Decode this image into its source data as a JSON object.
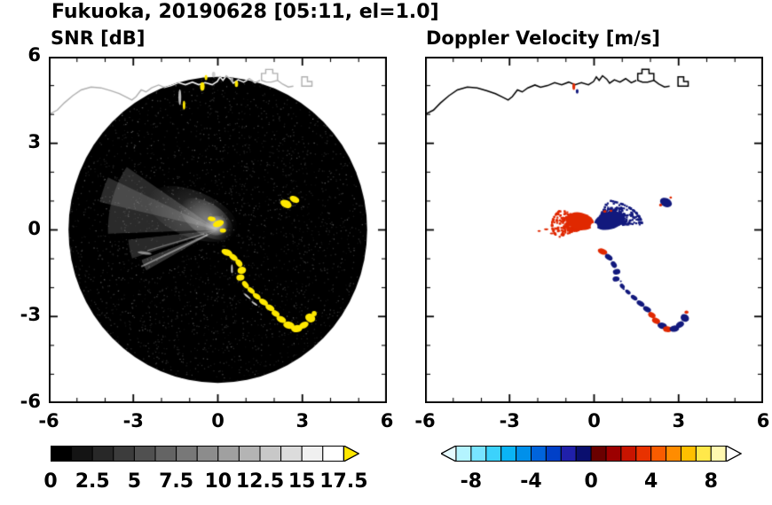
{
  "figure_title": "Fukuoka, 20190628 [05:11, el=1.0]",
  "panels": {
    "snr": {
      "title": "SNR [dB]",
      "x_tick_labels": [
        "-6",
        "-3",
        "0",
        "3",
        "6"
      ],
      "y_tick_labels": [
        "6",
        "3",
        "0",
        "-3",
        "-6"
      ],
      "colorbar_labels": [
        "0",
        "2.5",
        "5",
        "7.5",
        "10",
        "12.5",
        "15",
        "17.5"
      ],
      "colorbar_colors": [
        "#000000",
        "#141414",
        "#282828",
        "#3c3c3c",
        "#505050",
        "#646464",
        "#787878",
        "#8c8c8c",
        "#a0a0a0",
        "#b4b4b4",
        "#c8c8c8",
        "#dcdcdc",
        "#f0f0f0",
        "#ffffff"
      ],
      "colorbar_over_color": "#ffe800"
    },
    "doppler": {
      "title": "Doppler Velocity [m/s]",
      "x_tick_labels": [
        "-6",
        "-3",
        "0",
        "3",
        "6"
      ],
      "colorbar_labels": [
        "-8",
        "-4",
        "0",
        "4",
        "8"
      ],
      "colorbar_colors": [
        "#b4f4ff",
        "#78e4ff",
        "#3cd2fc",
        "#0ab4f5",
        "#0090ea",
        "#0064dc",
        "#0040c8",
        "#2020aa",
        "#0a0f6e",
        "#6a0000",
        "#9c0000",
        "#c81400",
        "#e83200",
        "#f85c00",
        "#ff8c00",
        "#ffc000",
        "#ffe84a",
        "#fff8b0"
      ],
      "colorbar_under_color": "#e6fbff",
      "colorbar_over_color": "#ffffff"
    }
  },
  "chart_data": {
    "type": "heatmap",
    "title": "Fukuoka, 20190628 [05:11, el=1.0]",
    "station": "Fukuoka",
    "date": "20190628",
    "time": "05:11",
    "elevation_deg": 1.0,
    "xlim": [
      -6,
      6
    ],
    "ylim": [
      -6,
      6
    ],
    "grid": false,
    "radar_disk": {
      "center": [
        0,
        0
      ],
      "radius": 5.3
    },
    "coastline": [
      [
        -6.0,
        4.0
      ],
      [
        -5.7,
        4.15
      ],
      [
        -5.45,
        4.4
      ],
      [
        -5.15,
        4.65
      ],
      [
        -4.85,
        4.85
      ],
      [
        -4.5,
        4.95
      ],
      [
        -4.15,
        4.92
      ],
      [
        -3.8,
        4.82
      ],
      [
        -3.5,
        4.72
      ],
      [
        -3.25,
        4.6
      ],
      [
        -3.05,
        4.5
      ],
      [
        -2.9,
        4.62
      ],
      [
        -2.72,
        4.85
      ],
      [
        -2.55,
        4.78
      ],
      [
        -2.35,
        4.92
      ],
      [
        -2.1,
        5.02
      ],
      [
        -1.9,
        4.94
      ],
      [
        -1.65,
        5.0
      ],
      [
        -1.4,
        5.1
      ],
      [
        -1.15,
        5.03
      ],
      [
        -0.9,
        5.12
      ],
      [
        -0.68,
        5.03
      ],
      [
        -0.45,
        5.1
      ],
      [
        -0.2,
        5.03
      ],
      [
        -0.02,
        5.14
      ],
      [
        0.08,
        5.3
      ],
      [
        0.18,
        5.18
      ],
      [
        0.3,
        5.34
      ],
      [
        0.45,
        5.22
      ],
      [
        0.55,
        5.08
      ],
      [
        0.72,
        5.2
      ],
      [
        0.92,
        5.12
      ],
      [
        1.12,
        5.24
      ],
      [
        1.32,
        5.1
      ],
      [
        1.5,
        5.18
      ]
    ],
    "port_outlines": [
      {
        "closed": true,
        "points": [
          [
            1.55,
            5.18
          ],
          [
            1.55,
            5.42
          ],
          [
            1.7,
            5.42
          ],
          [
            1.7,
            5.56
          ],
          [
            1.95,
            5.56
          ],
          [
            1.95,
            5.42
          ],
          [
            2.12,
            5.42
          ],
          [
            2.12,
            5.18
          ],
          [
            1.9,
            5.12
          ],
          [
            1.72,
            5.12
          ],
          [
            1.55,
            5.18
          ]
        ]
      },
      {
        "closed": false,
        "points": [
          [
            2.12,
            5.18
          ],
          [
            2.3,
            5.05
          ],
          [
            2.5,
            4.95
          ],
          [
            2.68,
            4.98
          ]
        ]
      },
      {
        "closed": true,
        "points": [
          [
            2.98,
            4.98
          ],
          [
            2.98,
            5.3
          ],
          [
            3.18,
            5.3
          ],
          [
            3.18,
            5.14
          ],
          [
            3.34,
            5.14
          ],
          [
            3.34,
            4.98
          ],
          [
            2.98,
            4.98
          ]
        ]
      }
    ],
    "panels": [
      {
        "name": "SNR [dB]",
        "units": "dB",
        "value_range": [
          0,
          17.5
        ],
        "colorbar_step": 1.25,
        "echo_color": "#ffe800",
        "wedges": [
          {
            "a0": 146,
            "a1": 182,
            "r": 3.9,
            "g": 150,
            "alpha": 0.28
          },
          {
            "a0": 186,
            "a1": 199,
            "r": 3.2,
            "g": 135,
            "alpha": 0.3
          },
          {
            "a0": 201,
            "a1": 209,
            "r": 2.9,
            "g": 150,
            "alpha": 0.35
          },
          {
            "a0": 155,
            "a1": 168,
            "r": 4.3,
            "g": 170,
            "alpha": 0.25
          }
        ],
        "dark_wedges": [
          {
            "a0": 182,
            "a1": 186,
            "r": 4.0
          },
          {
            "a0": 199,
            "a1": 201,
            "r": 3.3
          },
          {
            "a0": 209,
            "a1": 214,
            "r": 3.0
          }
        ],
        "streaks": [
          {
            "angle": 205,
            "r0": 0.4,
            "r1": 3.0,
            "w": 2,
            "alpha": 0.5
          },
          {
            "angle": 196,
            "r0": 0.5,
            "r1": 2.6,
            "w": 1.5,
            "alpha": 0.4
          }
        ],
        "plume": [
          {
            "cx": -0.9,
            "cy": 0.55,
            "rx": 1.7,
            "ry": 0.8,
            "rot": -22,
            "alpha": 0.22
          },
          {
            "cx": -0.4,
            "cy": 0.38,
            "rx": 1.05,
            "ry": 0.55,
            "rot": -33,
            "alpha": 0.45
          },
          {
            "cx": -0.05,
            "cy": 0.15,
            "rx": 0.42,
            "ry": 0.34,
            "rot": 0,
            "alpha": 0.85
          }
        ],
        "gray_marks": [
          [
            -1.35,
            4.6,
            0.1,
            0.55,
            0,
            "#bbbbbb"
          ],
          [
            -0.15,
            5.38,
            0.12,
            0.2,
            0,
            "#cccccc"
          ],
          [
            0.5,
            5.2,
            0.1,
            0.18,
            0,
            "#aaaaaa"
          ],
          [
            -2.6,
            -0.8,
            0.5,
            0.1,
            -8,
            "#888888"
          ]
        ],
        "faint_dashes": [
          [
            1.05,
            -2.3,
            0.3,
            0.05,
            -40
          ],
          [
            1.3,
            -2.55,
            0.25,
            0.05,
            -35
          ],
          [
            0.5,
            -1.35,
            0.05,
            0.3,
            0
          ]
        ],
        "echoes": [
          [
            0.02,
            0.22,
            0.4,
            0.22,
            20
          ],
          [
            -0.22,
            0.38,
            0.28,
            0.16,
            -10
          ],
          [
            0.18,
            -0.02,
            0.22,
            0.14,
            0
          ],
          [
            -0.55,
            4.97,
            0.16,
            0.3,
            0
          ],
          [
            -0.42,
            5.28,
            0.1,
            0.18,
            0
          ],
          [
            0.66,
            5.06,
            0.12,
            0.22,
            0
          ],
          [
            -1.2,
            4.32,
            0.09,
            0.3,
            0
          ],
          [
            2.42,
            0.9,
            0.42,
            0.26,
            -25
          ],
          [
            2.72,
            1.06,
            0.36,
            0.22,
            -25
          ],
          [
            0.32,
            -0.78,
            0.4,
            0.22,
            -20
          ],
          [
            0.55,
            -0.95,
            0.35,
            0.2,
            -35
          ],
          [
            0.75,
            -1.15,
            0.3,
            0.2,
            -55
          ],
          [
            0.85,
            -1.4,
            0.25,
            0.3,
            -75
          ],
          [
            0.8,
            -1.65,
            0.22,
            0.28,
            -85
          ],
          [
            0.98,
            -1.9,
            0.3,
            0.18,
            -50
          ],
          [
            1.18,
            -2.1,
            0.3,
            0.17,
            -40
          ],
          [
            1.38,
            -2.3,
            0.32,
            0.18,
            -35
          ],
          [
            1.62,
            -2.5,
            0.35,
            0.2,
            -30
          ],
          [
            1.85,
            -2.7,
            0.35,
            0.2,
            -28
          ],
          [
            2.05,
            -2.9,
            0.3,
            0.2,
            -30
          ],
          [
            2.25,
            -3.1,
            0.36,
            0.22,
            -25
          ],
          [
            2.52,
            -3.3,
            0.4,
            0.25,
            -10
          ],
          [
            2.8,
            -3.42,
            0.4,
            0.25,
            5
          ],
          [
            3.05,
            -3.3,
            0.36,
            0.22,
            25
          ],
          [
            3.28,
            -3.05,
            0.3,
            0.36,
            60
          ],
          [
            3.42,
            -2.9,
            0.18,
            0.18,
            0
          ]
        ]
      },
      {
        "name": "Doppler Velocity [m/s]",
        "units": "m/s",
        "value_range": [
          -9,
          9
        ],
        "colorbar_step": 1,
        "red": "#e02800",
        "navy": "#12197d",
        "red_fan": {
          "cx": 0.0,
          "cy": 0.18,
          "a0": 140,
          "a1": 212,
          "rmax": 1.5,
          "n": 550,
          "core": {
            "cx": -0.5,
            "cy": 0.3,
            "rx": 0.5,
            "ry": 0.3,
            "rot": -12
          }
        },
        "blue_fan": {
          "cx": 0.05,
          "cy": 0.15,
          "a0": 2,
          "a1": 75,
          "rmax": 1.65,
          "n": 620,
          "core": {
            "cx": 0.55,
            "cy": 0.32,
            "rx": 0.55,
            "ry": 0.3,
            "rot": 15
          }
        },
        "red_dashes": [
          [
            -1.7,
            0.02,
            0.16,
            0.07,
            0
          ],
          [
            -1.95,
            -0.04,
            0.12,
            0.06,
            0
          ],
          [
            -1.5,
            -0.12,
            0.14,
            0.06,
            0
          ],
          [
            0.38,
            0.64,
            0.12,
            0.08,
            0
          ],
          [
            0.6,
            0.66,
            0.1,
            0.07,
            0
          ]
        ],
        "white_hole": [
          0.0,
          0.12,
          0.12
        ],
        "spot_navy": [
          2.55,
          0.95,
          0.44,
          0.3,
          -25
        ],
        "spot_red": [
          [
            2.36,
            0.86,
            0.1,
            0.1,
            0
          ],
          [
            2.72,
            1.12,
            0.09,
            0.08,
            0
          ]
        ],
        "coast_marks": [
          [
            "r",
            -0.72,
            4.97,
            0.1,
            0.24
          ],
          [
            "n",
            -0.6,
            4.8,
            0.1,
            0.16
          ]
        ],
        "arc_echoes": [
          [
            0.3,
            -0.75,
            0.35,
            0.2,
            -20,
            "r"
          ],
          [
            0.52,
            -0.95,
            0.3,
            0.18,
            -35,
            "n"
          ],
          [
            0.7,
            -1.2,
            0.26,
            0.18,
            -55,
            "n"
          ],
          [
            0.8,
            -1.45,
            0.2,
            0.26,
            -75,
            "n"
          ],
          [
            0.78,
            -1.7,
            0.18,
            0.24,
            -85,
            "n"
          ],
          [
            0.95,
            -1.78,
            0.07,
            0.06,
            0,
            "n"
          ],
          [
            1.0,
            -1.95,
            0.2,
            0.14,
            -45,
            "n"
          ],
          [
            1.05,
            -2.05,
            0.08,
            0.06,
            0,
            "n"
          ],
          [
            1.2,
            -2.15,
            0.22,
            0.13,
            -40,
            "n"
          ],
          [
            1.42,
            -2.35,
            0.26,
            0.15,
            -33,
            "n"
          ],
          [
            1.65,
            -2.55,
            0.3,
            0.17,
            -30,
            "n"
          ],
          [
            1.88,
            -2.75,
            0.3,
            0.18,
            -28,
            "n"
          ],
          [
            2.05,
            -2.95,
            0.28,
            0.18,
            -30,
            "r"
          ],
          [
            2.2,
            -3.15,
            0.3,
            0.2,
            -25,
            "r"
          ],
          [
            2.42,
            -3.32,
            0.34,
            0.22,
            -12,
            "n"
          ],
          [
            2.6,
            -3.44,
            0.3,
            0.2,
            -5,
            "r"
          ],
          [
            2.85,
            -3.42,
            0.34,
            0.22,
            8,
            "n"
          ],
          [
            3.05,
            -3.28,
            0.3,
            0.2,
            30,
            "n"
          ],
          [
            3.22,
            -3.05,
            0.26,
            0.3,
            60,
            "n"
          ],
          [
            3.28,
            -2.85,
            0.14,
            0.12,
            0,
            "r"
          ]
        ]
      }
    ]
  }
}
